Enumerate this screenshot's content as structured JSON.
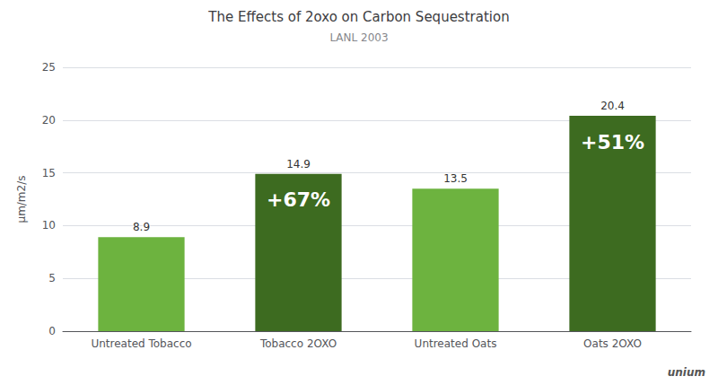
{
  "chart_data": {
    "type": "bar",
    "title": "The Effects of 2oxo on Carbon Sequestration",
    "subtitle": "LANL 2003",
    "categories": [
      "Untreated Tobacco",
      "Tobacco 2OXO",
      "Untreated Oats",
      "Oats 2OXO"
    ],
    "values": [
      8.9,
      14.9,
      13.5,
      20.4
    ],
    "colors": [
      "#6db33f",
      "#3d6b20",
      "#6db33f",
      "#3d6b20"
    ],
    "data_labels": true,
    "ylabel": "μm/m2/s",
    "ylim": [
      0,
      25
    ],
    "yticks": [
      0,
      5,
      10,
      15,
      20,
      25
    ],
    "grid": true,
    "annotations": [
      {
        "category": "Tobacco 2OXO",
        "text": "+67%"
      },
      {
        "category": "Oats 2OXO",
        "text": "+51%"
      },
      {
        "text": "unium"
      }
    ]
  }
}
